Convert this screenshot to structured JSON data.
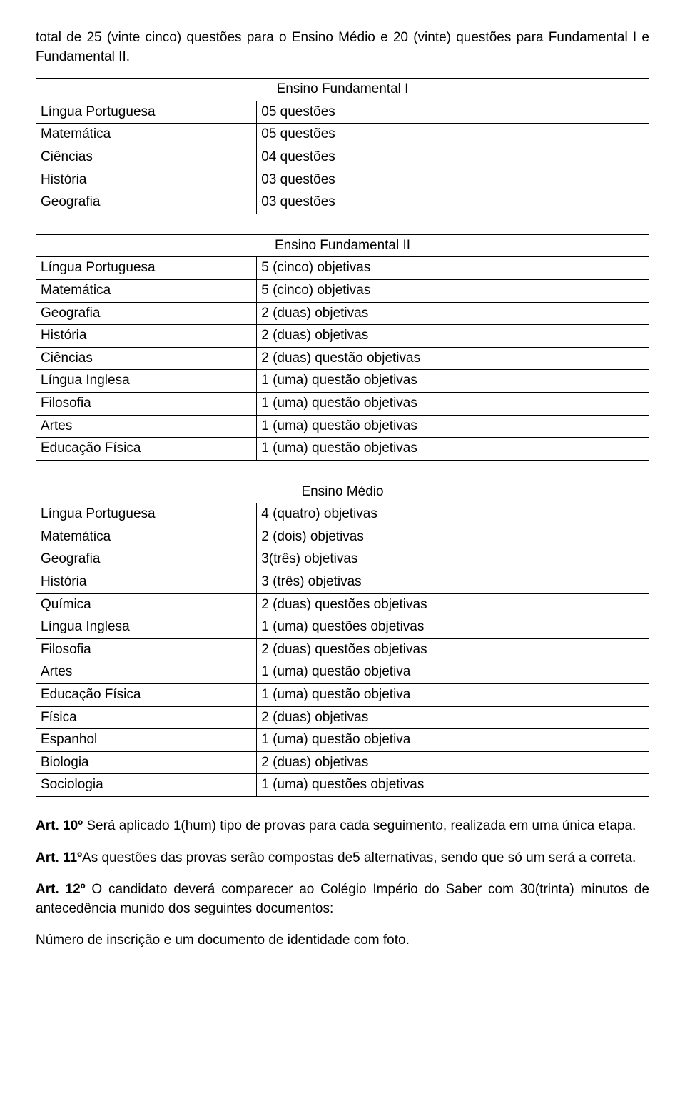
{
  "intro": "total de 25 (vinte cinco) questões para o Ensino Médio e 20 (vinte) questões para Fundamental I e Fundamental II.",
  "table1": {
    "header": "Ensino Fundamental I",
    "rows": [
      [
        "Língua Portuguesa",
        "05 questões"
      ],
      [
        "Matemática",
        "05 questões"
      ],
      [
        "Ciências",
        "04 questões"
      ],
      [
        "História",
        "03 questões"
      ],
      [
        "Geografia",
        "03 questões"
      ]
    ]
  },
  "table2": {
    "header": "Ensino Fundamental II",
    "rows": [
      [
        "Língua Portuguesa",
        "5 (cinco) objetivas"
      ],
      [
        "Matemática",
        "5 (cinco) objetivas"
      ],
      [
        "Geografia",
        "2 (duas) objetivas"
      ],
      [
        "História",
        "2 (duas) objetivas"
      ],
      [
        "Ciências",
        "2 (duas) questão objetivas"
      ],
      [
        "Língua Inglesa",
        "1 (uma) questão objetivas"
      ],
      [
        "Filosofia",
        "1 (uma) questão objetivas"
      ],
      [
        "Artes",
        "1 (uma) questão objetivas"
      ],
      [
        "Educação Física",
        "1 (uma) questão objetivas"
      ]
    ]
  },
  "table3": {
    "header": "Ensino Médio",
    "rows": [
      [
        "Língua Portuguesa",
        "4 (quatro) objetivas"
      ],
      [
        "Matemática",
        "2 (dois) objetivas"
      ],
      [
        "Geografia",
        "3(três) objetivas"
      ],
      [
        "História",
        "3 (três) objetivas"
      ],
      [
        "Química",
        "2 (duas) questões objetivas"
      ],
      [
        "Língua Inglesa",
        "1 (uma) questões objetivas"
      ],
      [
        "Filosofia",
        "2 (duas) questões objetivas"
      ],
      [
        "Artes",
        "1 (uma) questão objetiva"
      ],
      [
        "Educação Física",
        "1 (uma) questão objetiva"
      ],
      [
        "Física",
        "2 (duas) objetivas"
      ],
      [
        "Espanhol",
        "1 (uma) questão objetiva"
      ],
      [
        "Biologia",
        "2 (duas) objetivas"
      ],
      [
        "Sociologia",
        "1 (uma) questões objetivas"
      ]
    ]
  },
  "articles": {
    "art10_bold": "Art. 10º",
    "art10_rest": " Será aplicado 1(hum) tipo de provas para cada seguimento, realizada em uma única etapa.",
    "art11_bold": "Art. 11º",
    "art11_rest": "As questões das provas serão compostas de5 alternativas, sendo que só um será a correta.",
    "art12_bold": "Art. 12º",
    "art12_rest": " O candidato deverá comparecer ao Colégio Império do Saber com 30(trinta) minutos de antecedência munido dos seguintes documentos:",
    "final": "Número de inscrição e um documento de identidade com foto."
  }
}
